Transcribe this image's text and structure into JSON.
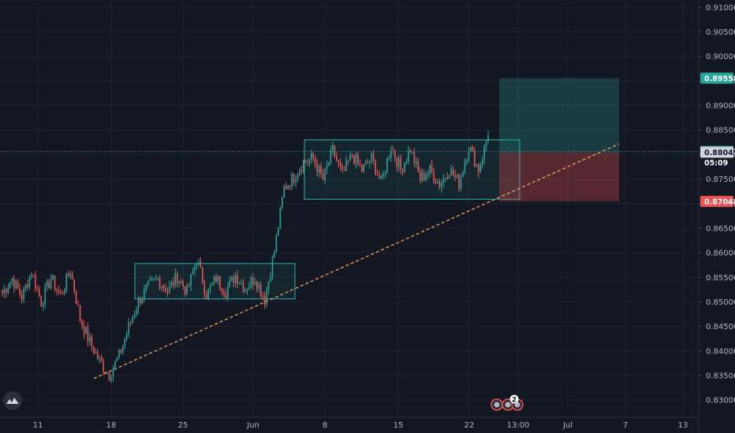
{
  "chart_data": {
    "type": "candlestick",
    "title": "",
    "y_axis": {
      "range": [
        0.8265,
        0.9115
      ],
      "ticks": [
        "0.91000",
        "0.90500",
        "0.90000",
        "0.89500",
        "0.89000",
        "0.88500",
        "0.88000",
        "0.87500",
        "0.87000",
        "0.86500",
        "0.86000",
        "0.85500",
        "0.85000",
        "0.84500",
        "0.84000",
        "0.83500",
        "0.83000"
      ]
    },
    "x_axis": {
      "ticks": [
        "11",
        "18",
        "25",
        "Jun",
        "8",
        "15",
        "22",
        "13:00",
        "Jul",
        "7",
        "13"
      ]
    },
    "price_tags": {
      "target": {
        "label": "0.89558",
        "color": "#26a69a"
      },
      "last": {
        "label": "0.88065",
        "color": "#26a69a"
      },
      "countdown": {
        "label": "05:09"
      },
      "entry": {
        "label": "0.88049",
        "color": "#787b86"
      },
      "stop": {
        "label": "0.87048",
        "color": "#ef5350"
      }
    },
    "consolidation_ranges": [
      {
        "name": "range-1",
        "high": 0.8578,
        "low": 0.8506
      },
      {
        "name": "range-2",
        "high": 0.883,
        "low": 0.8709
      }
    ],
    "trendline": {
      "from": 0.8344,
      "to": 0.8822,
      "style": "dashed",
      "color": "#f7a35c"
    },
    "position": {
      "target": 0.89558,
      "entry": 0.88049,
      "stop": 0.87048
    },
    "anchor_closes": [
      0.8518,
      0.8548,
      0.851,
      0.8562,
      0.85,
      0.8548,
      0.8512,
      0.8565,
      0.8465,
      0.8418,
      0.838,
      0.8352,
      0.839,
      0.8448,
      0.8502,
      0.853,
      0.8548,
      0.8522,
      0.8552,
      0.852,
      0.8588,
      0.8515,
      0.8548,
      0.8522,
      0.8555,
      0.8528,
      0.855,
      0.8505,
      0.8603,
      0.8732,
      0.8755,
      0.8785,
      0.8792,
      0.8748,
      0.8808,
      0.8758,
      0.88,
      0.8768,
      0.8792,
      0.8742,
      0.8818,
      0.877,
      0.8812,
      0.875,
      0.8768,
      0.874,
      0.877,
      0.8742,
      0.8818,
      0.877,
      0.8839
    ],
    "colors": {
      "up": "#26a69a",
      "down": "#ef5350",
      "background": "#131722",
      "grid": "#1e222d"
    },
    "grid": true
  },
  "toolbar": {
    "logo_icon": "tradingview-logo-icon",
    "event_badge_count": "2"
  }
}
